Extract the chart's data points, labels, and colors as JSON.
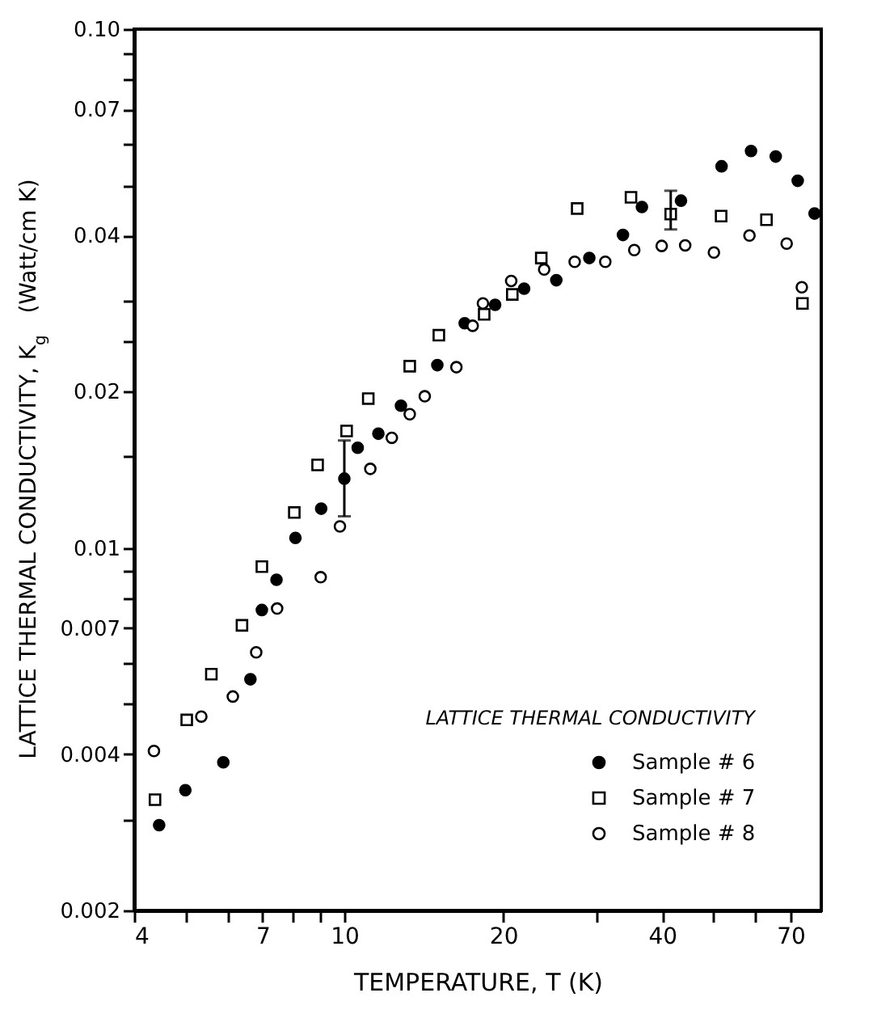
{
  "chart_data": {
    "type": "scatter",
    "xlabel": "TEMPERATURE,  T    (K)",
    "ylabel": "LATTICE THERMAL CONDUCTIVITY, K$_{g}$   (Watt/cm K)",
    "legend_title": "LATTICE THERMAL CONDUCTIVITY",
    "legend": "bottom right",
    "log": "xy",
    "grid": false,
    "xlim": [
      4,
      80
    ],
    "ylim": [
      0.002,
      0.1
    ],
    "xticks": [
      4,
      {
        "value": 5,
        "label": null
      },
      {
        "value": 6,
        "label": null
      },
      7,
      {
        "value": 8,
        "label": null
      },
      {
        "value": 9,
        "label": null
      },
      10,
      20,
      {
        "value": 30,
        "label": null
      },
      40,
      {
        "value": 50,
        "label": null
      },
      {
        "value": 60,
        "label": null
      },
      70
    ],
    "yticks": [
      0.002,
      {
        "value": 0.003,
        "label": null
      },
      0.004,
      {
        "value": 0.005,
        "label": null
      },
      {
        "value": 0.006,
        "label": null
      },
      0.007,
      {
        "value": 0.008,
        "label": null
      },
      {
        "value": 0.009,
        "label": null
      },
      0.01,
      {
        "value": 0.015,
        "label": null
      },
      0.02,
      {
        "value": 0.025,
        "label": null
      },
      {
        "value": 0.03,
        "label": null
      },
      0.04,
      {
        "value": 0.05,
        "label": null
      },
      {
        "value": 0.06,
        "label": null
      },
      0.07,
      {
        "value": 0.08,
        "label": null
      },
      {
        "value": 0.09,
        "label": null
      },
      {
        "value": 0.1,
        "label": "0.10"
      }
    ],
    "series": [
      {
        "name": "Sample # 6",
        "color": "#000000",
        "marker": "circle",
        "x": [
          4.46,
          5.0,
          5.9,
          6.64,
          6.98,
          7.44,
          8.08,
          9.04,
          10,
          10.6,
          11.6,
          12.8,
          15.0,
          16.9,
          19.3,
          21.9,
          25.2,
          29.1,
          33.7,
          36.6,
          43.4,
          51.8,
          58.9,
          65.6,
          72.2,
          77.7
        ],
        "values": [
          0.00292,
          0.00341,
          0.00386,
          0.00558,
          0.00759,
          0.00868,
          0.01045,
          0.0119,
          0.0136,
          0.0156,
          0.0166,
          0.0188,
          0.0225,
          0.0271,
          0.0294,
          0.0316,
          0.0328,
          0.0362,
          0.0401,
          0.0454,
          0.0467,
          0.0544,
          0.0582,
          0.0568,
          0.051,
          0.0441
        ],
        "errors": [
          null,
          null,
          null,
          null,
          null,
          null,
          null,
          null,
          [
            0.0115,
            0.0161
          ],
          null,
          null,
          null,
          null,
          null,
          null,
          null,
          null,
          null,
          null,
          null,
          null,
          null,
          null,
          null,
          null,
          null
        ]
      },
      {
        "name": "Sample # 7",
        "color": "#000000",
        "marker": "square",
        "x": [
          4.38,
          5.03,
          5.6,
          6.4,
          6.98,
          8.04,
          8.9,
          10.1,
          11.1,
          13.3,
          15.1,
          18.4,
          20.8,
          23.6,
          27.6,
          34.9,
          41.5,
          51.7,
          63.0,
          73.7
        ],
        "values": [
          0.00327,
          0.00466,
          0.00571,
          0.00709,
          0.0092,
          0.0117,
          0.01445,
          0.0168,
          0.0194,
          0.0224,
          0.0257,
          0.0282,
          0.0308,
          0.0362,
          0.0451,
          0.0474,
          0.044,
          0.0436,
          0.0429,
          0.0296
        ],
        "errors": [
          null,
          null,
          null,
          null,
          null,
          null,
          null,
          null,
          null,
          null,
          null,
          null,
          null,
          null,
          null,
          null,
          [
            0.0411,
            0.0488
          ],
          null,
          null,
          null
        ]
      },
      {
        "name": "Sample # 8",
        "color": "#000000",
        "marker": "circle",
        "x": [
          4.36,
          5.36,
          6.15,
          6.81,
          7.46,
          9.02,
          9.81,
          11.2,
          12.3,
          13.3,
          14.2,
          16.3,
          17.5,
          18.3,
          20.7,
          23.9,
          27.3,
          31.2,
          35.4,
          39.9,
          44.2,
          50.1,
          58.5,
          68.8,
          73.5
        ],
        "values": [
          0.00406,
          0.00473,
          0.00517,
          0.00629,
          0.00764,
          0.00878,
          0.011,
          0.0142,
          0.0163,
          0.0181,
          0.0196,
          0.0223,
          0.0268,
          0.0296,
          0.0327,
          0.0344,
          0.0356,
          0.0356,
          0.0375,
          0.0382,
          0.0383,
          0.0371,
          0.04,
          0.0386,
          0.0318
        ]
      }
    ]
  }
}
